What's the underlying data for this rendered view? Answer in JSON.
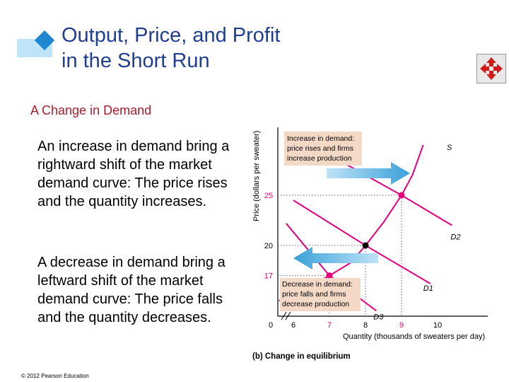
{
  "slide": {
    "title_line1": "Output, Price, and Profit",
    "title_line2": "in the Short Run",
    "subheading": "A Change in Demand",
    "paragraph1": "An increase in demand bring a rightward shift of the market demand curve: The price rises and the quantity increases.",
    "paragraph2": "A decrease in demand bring a leftward shift of the market demand curve: The price falls and the quantity decreases.",
    "copyright": "© 2012 Pearson Education",
    "nav_icon": "move-arrows-icon",
    "colors": {
      "title": "#1f3e8f",
      "subheading": "#a81d2b",
      "accent": "#1e88cf"
    }
  },
  "chart_data": {
    "type": "line",
    "title": "(b) Change in equilibrium",
    "xlabel": "Quantity (thousands of sweaters per day)",
    "ylabel": "Price (dollars per sweater)",
    "xlim": [
      0,
      10
    ],
    "ylim": [
      14,
      31
    ],
    "x_axis_break": true,
    "x_ticks": [
      {
        "value": 0,
        "label": "0"
      },
      {
        "value": 6,
        "label": "6"
      },
      {
        "value": 7,
        "label": "7"
      },
      {
        "value": 8,
        "label": "8"
      },
      {
        "value": 9,
        "label": "9"
      },
      {
        "value": 10,
        "label": "10"
      }
    ],
    "y_ticks": [
      {
        "value": 17,
        "label": "17"
      },
      {
        "value": 20,
        "label": "20"
      },
      {
        "value": 25,
        "label": "25"
      }
    ],
    "series": [
      {
        "name": "S",
        "color": "#e6007e",
        "points": [
          [
            5.6,
            14.5
          ],
          [
            6.2,
            15.5
          ],
          [
            7,
            17
          ],
          [
            7.6,
            18.3
          ],
          [
            8,
            20
          ],
          [
            8.5,
            22.3
          ],
          [
            9,
            25
          ],
          [
            9.3,
            27
          ],
          [
            9.6,
            30
          ]
        ]
      },
      {
        "name": "D1",
        "color": "#e6007e",
        "points": [
          [
            6.0,
            24.5
          ],
          [
            8,
            20
          ],
          [
            9.8,
            16.2
          ]
        ]
      },
      {
        "name": "D2",
        "color": "#e6007e",
        "points": [
          [
            6.0,
            31
          ],
          [
            9,
            25
          ],
          [
            10.4,
            22
          ]
        ]
      },
      {
        "name": "D3",
        "color": "#e6007e",
        "points": [
          [
            5.8,
            22.2
          ],
          [
            7,
            17
          ],
          [
            8.3,
            13.5
          ]
        ]
      }
    ],
    "equilibria": [
      {
        "x": 8,
        "y": 20,
        "color": "#000000"
      },
      {
        "x": 9,
        "y": 25,
        "color": "#e6007e"
      },
      {
        "x": 7,
        "y": 17,
        "color": "#e6007e"
      }
    ],
    "annotations": [
      {
        "lines": [
          "Increase in demand:",
          "price rises and firms",
          "increase production"
        ],
        "type": "callout",
        "arrow": "right"
      },
      {
        "lines": [
          "Decrease in demand:",
          "price falls and firms",
          "decrease production"
        ],
        "type": "callout",
        "arrow": "left"
      }
    ],
    "colors": {
      "curves": "#e6007e",
      "arrow": "#3aa0d8",
      "callout_bg": "#f3d9c6",
      "tick_labels_highlight": "#e6007e"
    }
  }
}
